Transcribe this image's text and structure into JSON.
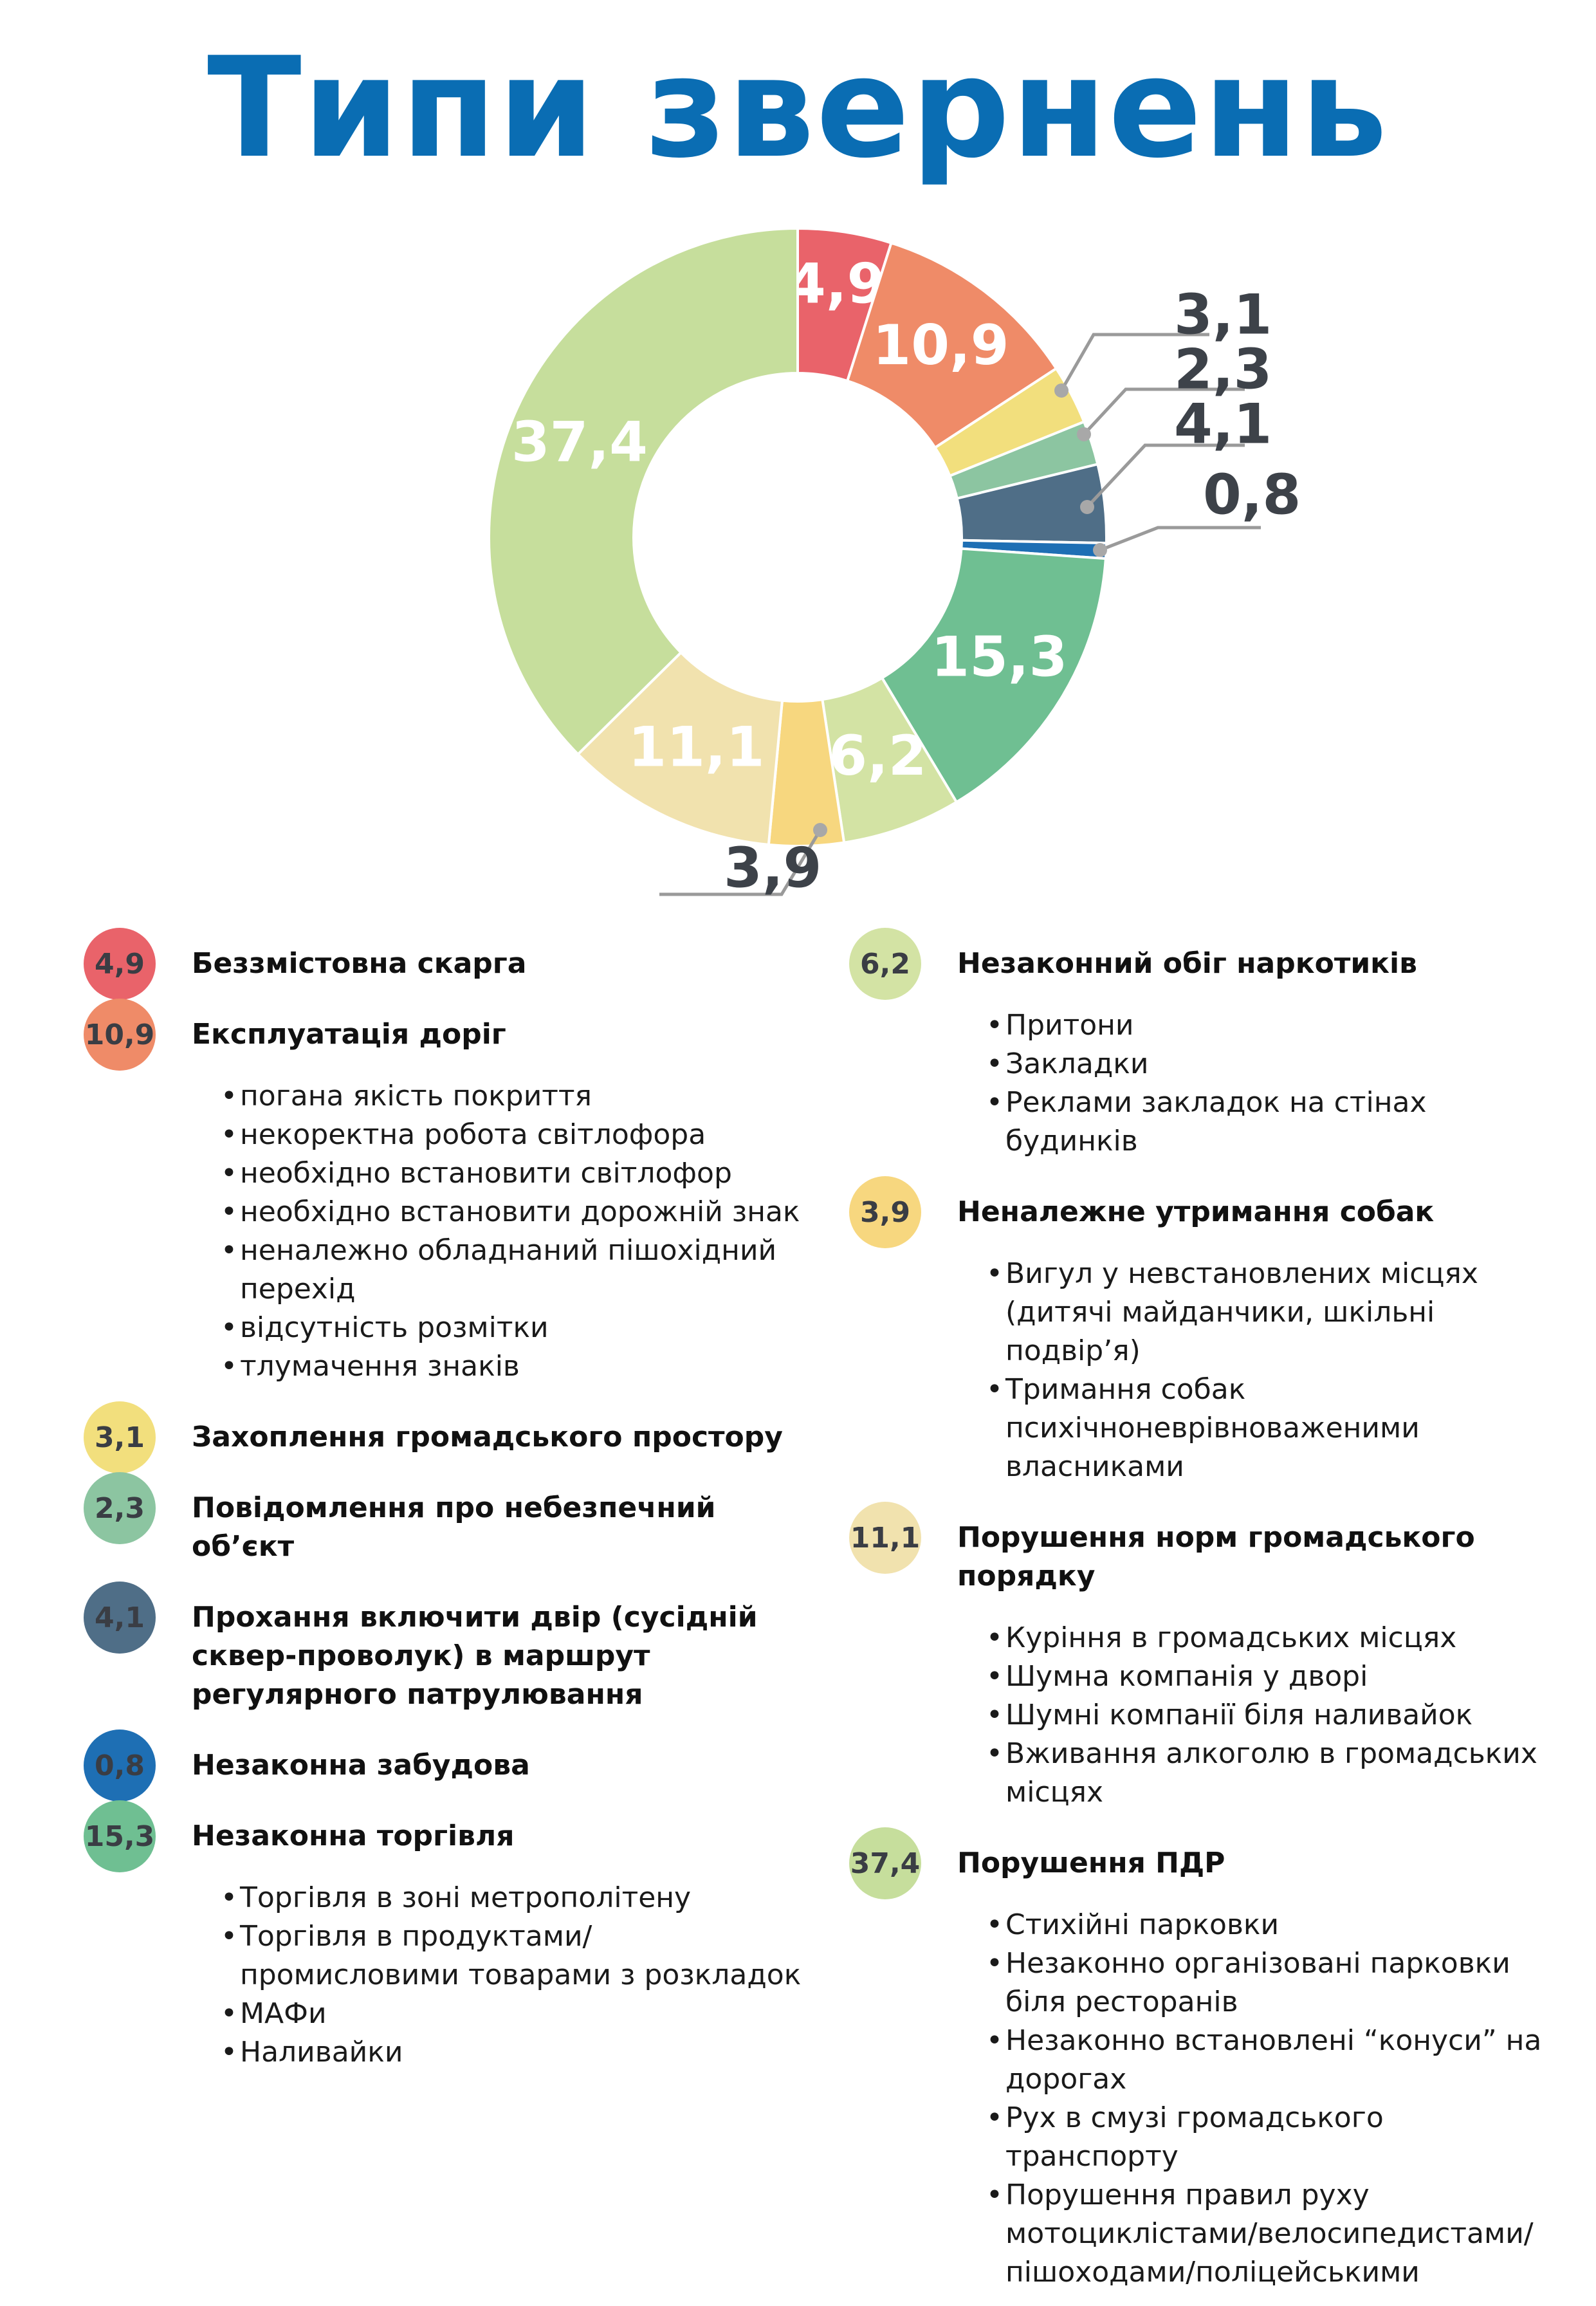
{
  "title": "Типи звернень",
  "chart_data": {
    "type": "pie",
    "title": "Типи звернень",
    "donut": true,
    "slices": [
      {
        "label": "Беззмістовна скарга",
        "value": 4.9,
        "display": "4,9",
        "color": "#e9636a"
      },
      {
        "label": "Експлуатація доріг",
        "value": 10.9,
        "display": "10,9",
        "color": "#ef8b68"
      },
      {
        "label": "Захоплення громадського простору",
        "value": 3.1,
        "display": "3,1",
        "color": "#f2df7d"
      },
      {
        "label": "Повідомлення про небезпечний об’єкт",
        "value": 2.3,
        "display": "2,3",
        "color": "#8cc5a1"
      },
      {
        "label": "Прохання включити двір (сусідній сквер-проволук) в маршрут регулярного патрулювання",
        "value": 4.1,
        "display": "4,1",
        "color": "#4f6e87"
      },
      {
        "label": "Незаконна забудова",
        "value": 0.8,
        "display": "0,8",
        "color": "#1e6fb4"
      },
      {
        "label": "Незаконна торгівля",
        "value": 15.3,
        "display": "15,3",
        "color": "#6fbf92"
      },
      {
        "label": "Незаконний обіг наркотиків",
        "value": 6.2,
        "display": "6,2",
        "color": "#d3e3a4"
      },
      {
        "label": "Неналежне утримання собак",
        "value": 3.9,
        "display": "3,9",
        "color": "#f7d77f"
      },
      {
        "label": "Порушення норм громадського порядку",
        "value": 11.1,
        "display": "11,1",
        "color": "#f1e2ae"
      },
      {
        "label": "Порушення ПДР",
        "value": 37.4,
        "display": "37,4",
        "color": "#c6de9c"
      }
    ]
  },
  "legend": {
    "left": [
      {
        "value": "4,9",
        "color": "#e9636a",
        "title": "Беззмістовна скарга",
        "items": []
      },
      {
        "value": "10,9",
        "color": "#ef8b68",
        "title": "Експлуатація доріг",
        "items": [
          "погана якість покриття",
          "некоректна робота світлофора",
          "необхідно встановити світлофор",
          "необхідно встановити дорожній знак",
          "неналежно обладнаний пішохідний перехід",
          "відсутність розмітки",
          "тлумачення знаків"
        ]
      },
      {
        "value": "3,1",
        "color": "#f2df7d",
        "title": "Захоплення громадського простору",
        "items": []
      },
      {
        "value": "2,3",
        "color": "#8cc5a1",
        "title": "Повідомлення про небезпечний об’єкт",
        "items": []
      },
      {
        "value": "4,1",
        "color": "#4f6e87",
        "title": "Прохання включити двір (сусідній сквер-проволук) в маршрут регулярного патрулювання",
        "items": []
      },
      {
        "value": "0,8",
        "color": "#1e6fb4",
        "title": "Незаконна забудова",
        "items": []
      },
      {
        "value": "15,3",
        "color": "#6fbf92",
        "title": "Незаконна торгівля",
        "items": [
          "Торгівля в зоні метрополітену",
          "Торгівля в продуктами/ промисловими товарами з розкладок",
          "МАФи",
          "Наливайки"
        ]
      }
    ],
    "right": [
      {
        "value": "6,2",
        "color": "#d3e3a4",
        "title": "Незаконний обіг наркотиків",
        "items": [
          "Притони",
          "Закладки",
          "Реклами закладок на стінах будинків"
        ]
      },
      {
        "value": "3,9",
        "color": "#f7d77f",
        "title": "Неналежне утримання собак",
        "items": [
          "Вигул у невстановлених місцях (дитячі майданчики, шкільні подвір’я)",
          "Тримання собак психічноневрівноваженими власниками"
        ]
      },
      {
        "value": "11,1",
        "color": "#f1e2ae",
        "title": "Порушення норм громадського порядку",
        "items": [
          "Куріння в громадських місцях",
          "Шумна компанія у дворі",
          "Шумні компанії біля наливайок",
          "Вживання алкоголю в громадських місцях"
        ]
      },
      {
        "value": "37,4",
        "color": "#c6de9c",
        "title": "Порушення ПДР",
        "items": [
          "Стихійні парковки",
          "Незаконно організовані парковки біля ресторанів",
          "Незаконно встановлені “конуси” на дорогах",
          "Рух в смузі громадського транспорту",
          "Порушення правил руху мотоциклістами/велосипедистами/ пішоходами/поліцейськими"
        ]
      }
    ]
  }
}
